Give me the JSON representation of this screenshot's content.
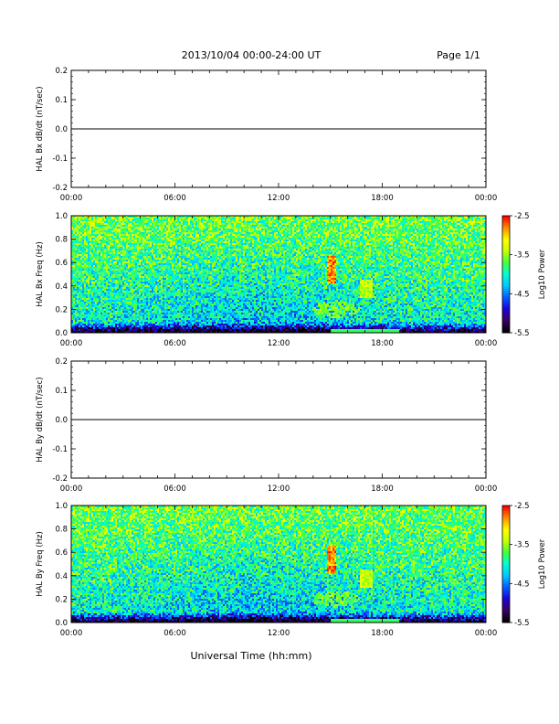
{
  "header": {
    "date_range": "2013/10/04  00:00-24:00 UT",
    "page": "Page 1/1"
  },
  "colors": {
    "trace": "#000000",
    "axis": "#000000",
    "colormap": [
      "#000000",
      "#3a0066",
      "#1e00d8",
      "#0060ff",
      "#00c8ff",
      "#00ffd0",
      "#40ff40",
      "#c8ff00",
      "#ffff00",
      "#ff9000",
      "#ff0000"
    ]
  },
  "xlabel": "Universal Time (hh:mm)",
  "x_ticks": [
    "00:00",
    "06:00",
    "12:00",
    "18:00",
    "00:00"
  ],
  "chart_data": [
    {
      "id": "bx_dbdt",
      "type": "line",
      "ylabel": "HAL Bx dB/dt (nT/sec)",
      "xlim": [
        0,
        24
      ],
      "ylim": [
        -0.2,
        0.2
      ],
      "y_ticks": [
        "0.2",
        "0.1",
        "0.0",
        "-0.1",
        "-0.2"
      ],
      "series": [
        {
          "x": [
            0,
            15,
            17,
            24
          ],
          "values": [
            0,
            0,
            0,
            0
          ]
        }
      ]
    },
    {
      "id": "bx_spec",
      "type": "heatmap",
      "ylabel": "HAL Bx Freq (Hz)",
      "xlim": [
        0,
        24
      ],
      "ylim": [
        0,
        1.0
      ],
      "y_ticks": [
        "1.0",
        "0.8",
        "0.6",
        "0.4",
        "0.2",
        "0.0"
      ],
      "colorbar": {
        "label": "Log10 Power",
        "range": [
          -5.5,
          -2.5
        ],
        "ticks": [
          "-2.5",
          "-3.5",
          "-4.5",
          "-5.5"
        ]
      }
    },
    {
      "id": "by_dbdt",
      "type": "line",
      "ylabel": "HAL By dB/dt (nT/sec)",
      "xlim": [
        0,
        24
      ],
      "ylim": [
        -0.2,
        0.2
      ],
      "y_ticks": [
        "0.2",
        "0.1",
        "0.0",
        "-0.1",
        "-0.2"
      ],
      "series": [
        {
          "x": [
            0,
            15,
            17,
            24
          ],
          "values": [
            0,
            0,
            0,
            0
          ]
        }
      ]
    },
    {
      "id": "by_spec",
      "type": "heatmap",
      "ylabel": "HAL By Freq (Hz)",
      "xlim": [
        0,
        24
      ],
      "ylim": [
        0,
        1.0
      ],
      "y_ticks": [
        "1.0",
        "0.8",
        "0.6",
        "0.4",
        "0.2",
        "0.0"
      ],
      "colorbar": {
        "label": "Log10 Power",
        "range": [
          -5.5,
          -2.5
        ],
        "ticks": [
          "-2.5",
          "-3.5",
          "-4.5",
          "-5.5"
        ]
      }
    }
  ]
}
